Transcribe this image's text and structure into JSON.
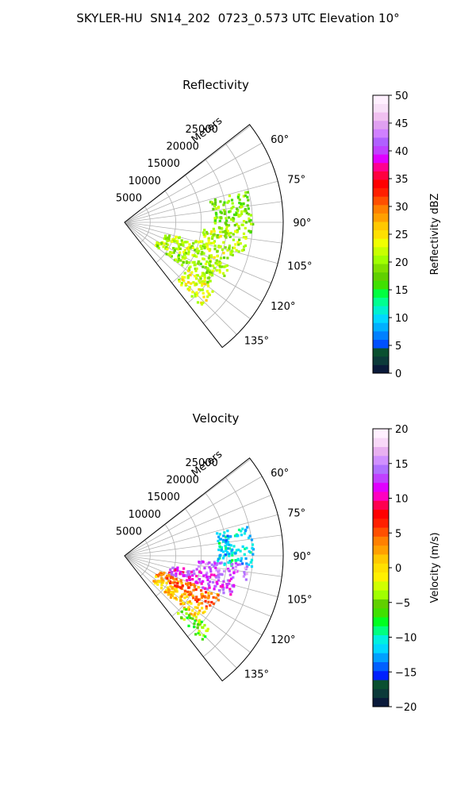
{
  "figure_title": "SKYLER-HU  SN14_202  0723_0.573 UTC Elevation 10°",
  "chart_data": [
    {
      "type": "polar-sector-heatmap",
      "title": "Reflectivity",
      "radial_axis_label": "Meters",
      "radial_ticks": [
        5000,
        10000,
        15000,
        20000,
        25000
      ],
      "radial_tick_labels": [
        "5000",
        "10000",
        "15000",
        "20000",
        "25000"
      ],
      "r_max": 31000,
      "angle_range_deg": [
        52,
        142
      ],
      "angle_ticks_deg": [
        60,
        75,
        90,
        105,
        120,
        135
      ],
      "angle_tick_labels": [
        "60°",
        "75°",
        "90°",
        "105°",
        "120°",
        "135°"
      ],
      "grid": true,
      "colorbar": {
        "label": "Reflectivity dBZ",
        "min": 0,
        "max": 50,
        "ticks": [
          0,
          5,
          10,
          15,
          20,
          25,
          30,
          35,
          40,
          45,
          50
        ],
        "tick_labels": [
          "0",
          "5",
          "10",
          "15",
          "20",
          "25",
          "30",
          "35",
          "40",
          "45",
          "50"
        ],
        "colors": [
          "#0a1a3a",
          "#0c3a3a",
          "#0a5030",
          "#0050ff",
          "#0080ff",
          "#00b0ff",
          "#00d8ff",
          "#00f0d0",
          "#00ff90",
          "#00ff40",
          "#40e000",
          "#60d000",
          "#80e000",
          "#a0ff00",
          "#c8ff00",
          "#f0ff00",
          "#ffe000",
          "#ffc800",
          "#ffa000",
          "#ff8000",
          "#ff5000",
          "#ff2000",
          "#ff0000",
          "#ff0040",
          "#ff0090",
          "#e000ff",
          "#c040ff",
          "#b060ff",
          "#d080ff",
          "#e0a0f0",
          "#f0c0f0",
          "#f8e0f8",
          "#fff0ff"
        ]
      },
      "echo_regions": [
        {
          "az_from": 75,
          "az_to": 95,
          "r_from": 17000,
          "r_to": 25000,
          "value": 19
        },
        {
          "az_from": 94,
          "az_to": 104,
          "r_from": 15000,
          "r_to": 24000,
          "value": 21
        },
        {
          "az_from": 104,
          "az_to": 118,
          "r_from": 8000,
          "r_to": 22000,
          "value": 21
        },
        {
          "az_from": 118,
          "az_to": 127,
          "r_from": 7000,
          "r_to": 20000,
          "value": 20
        },
        {
          "az_from": 127,
          "az_to": 138,
          "r_from": 15000,
          "r_to": 22000,
          "value": 23
        }
      ]
    },
    {
      "type": "polar-sector-heatmap",
      "title": "Velocity",
      "radial_axis_label": "Meters",
      "radial_ticks": [
        5000,
        10000,
        15000,
        20000,
        25000
      ],
      "radial_tick_labels": [
        "5000",
        "10000",
        "15000",
        "20000",
        "25000"
      ],
      "r_max": 31000,
      "angle_range_deg": [
        52,
        142
      ],
      "angle_ticks_deg": [
        60,
        75,
        90,
        105,
        120,
        135
      ],
      "angle_tick_labels": [
        "60°",
        "75°",
        "90°",
        "105°",
        "120°",
        "135°"
      ],
      "grid": true,
      "colorbar": {
        "label": "Velocity (m/s)",
        "min": -20,
        "max": 20,
        "ticks": [
          -20,
          -15,
          -10,
          -5,
          0,
          5,
          10,
          15,
          20
        ],
        "tick_labels": [
          "−20",
          "−15",
          "−10",
          "−5",
          "0",
          "5",
          "10",
          "15",
          "20"
        ],
        "colors": [
          "#0a1a3a",
          "#0c3a3a",
          "#0a5030",
          "#0020ff",
          "#0060ff",
          "#00a0ff",
          "#00d8ff",
          "#00f0e0",
          "#00ff80",
          "#00ff20",
          "#40e000",
          "#60d000",
          "#a0ff00",
          "#d0ff00",
          "#fff000",
          "#ffe000",
          "#ffc800",
          "#ffa000",
          "#ff8000",
          "#ff5000",
          "#ff2000",
          "#ff0000",
          "#ff0050",
          "#ff00c0",
          "#e000ff",
          "#c040ff",
          "#b070ff",
          "#d090ff",
          "#e8b0f0",
          "#f8d8f8",
          "#fff0ff"
        ]
      },
      "echo_regions": [
        {
          "az_from": 75,
          "az_to": 95,
          "r_from": 18000,
          "r_to": 25000,
          "value": -11
        },
        {
          "az_from": 93,
          "az_to": 101,
          "r_from": 14000,
          "r_to": 24000,
          "value": 14
        },
        {
          "az_from": 101,
          "az_to": 112,
          "r_from": 9000,
          "r_to": 22000,
          "value": 12
        },
        {
          "az_from": 112,
          "az_to": 122,
          "r_from": 7000,
          "r_to": 20000,
          "value": 4
        },
        {
          "az_from": 122,
          "az_to": 132,
          "r_from": 7000,
          "r_to": 19000,
          "value": 1
        },
        {
          "az_from": 130,
          "az_to": 138,
          "r_from": 15000,
          "r_to": 22000,
          "value": -5
        }
      ]
    }
  ]
}
